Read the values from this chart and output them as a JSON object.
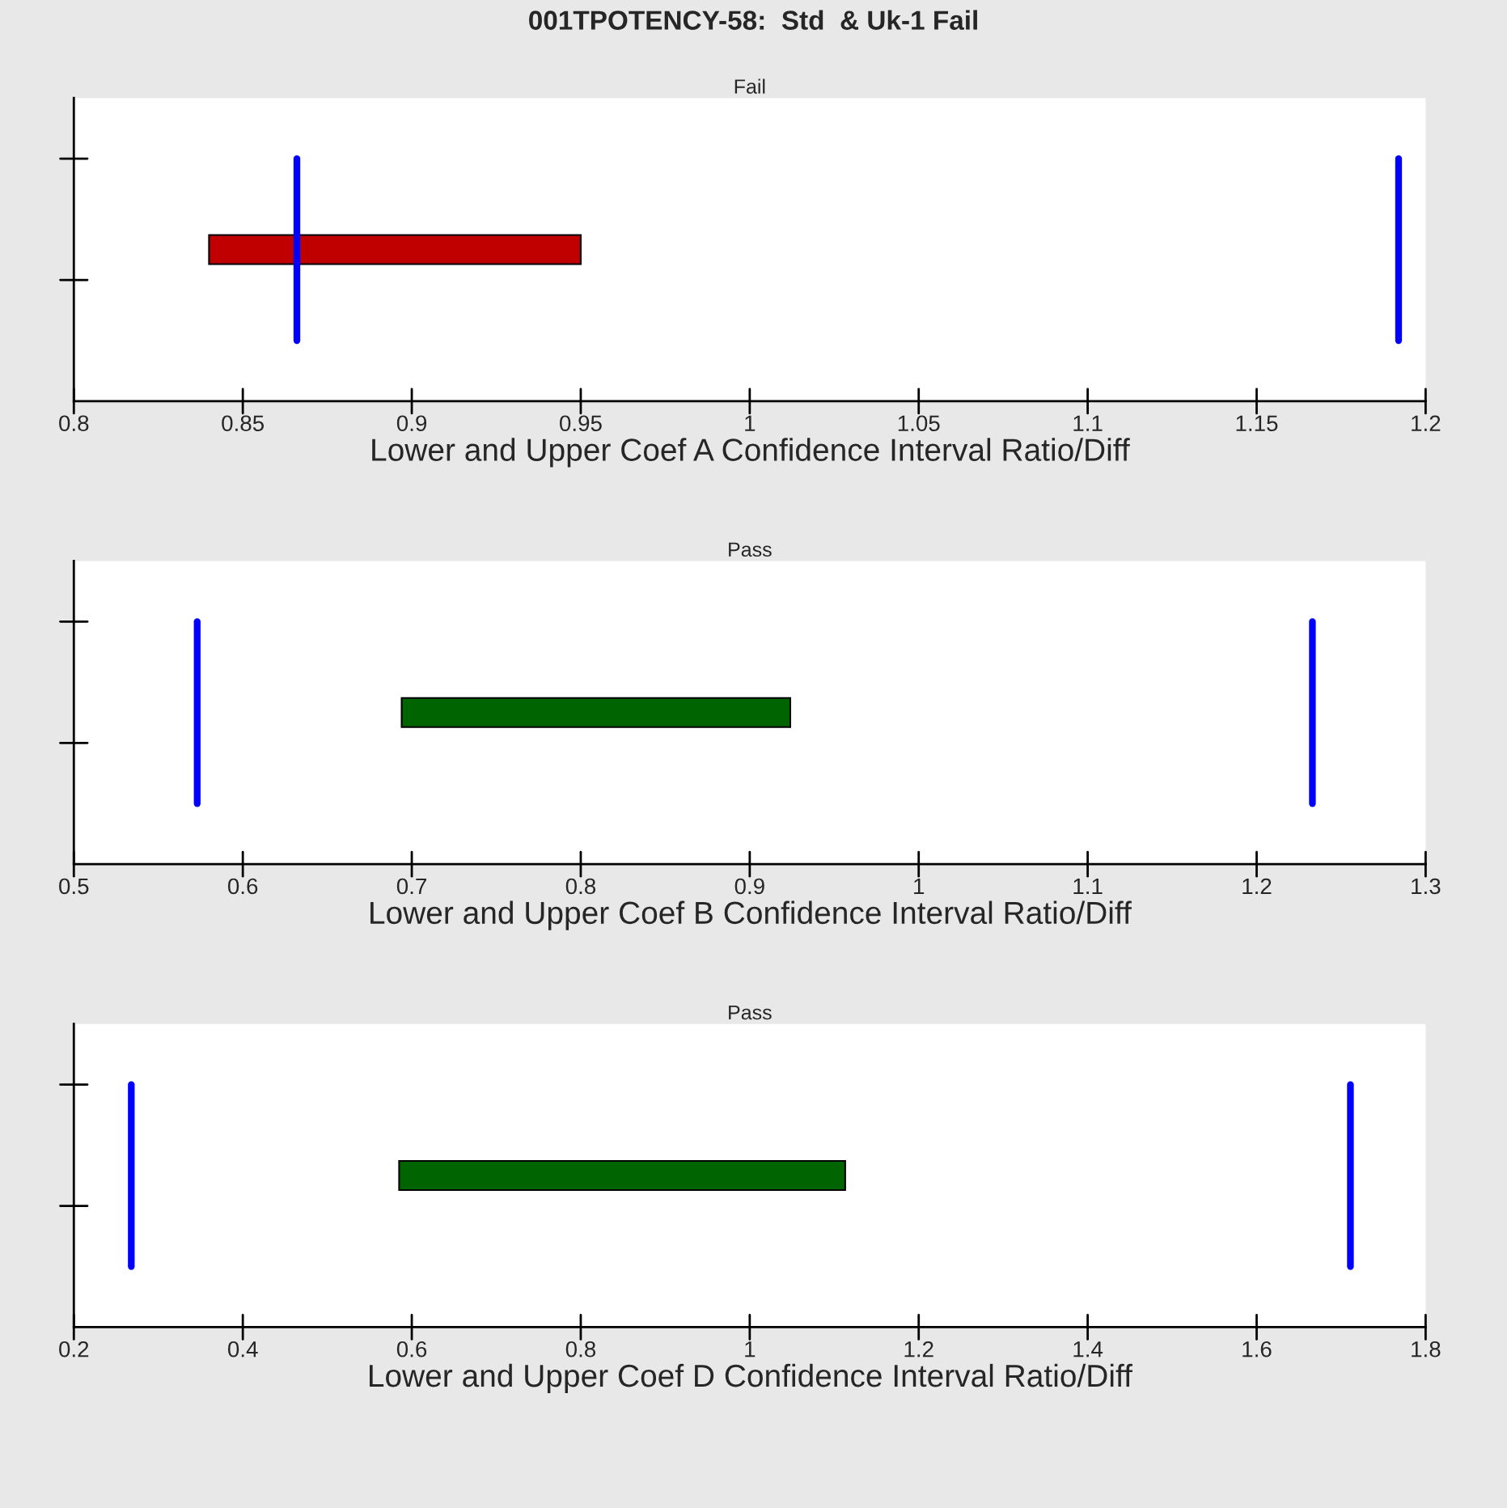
{
  "chart_data": [
    {
      "type": "bar",
      "orientation": "horizontal",
      "title": "001TPOTENCY-58:  Std  & Uk-1 Fail",
      "subtitle": "Fail",
      "xlabel": "Lower and Upper Coef A Confidence Interval Ratio/Diff",
      "categories": [
        null
      ],
      "base": [
        0.84
      ],
      "values": [
        0.11
      ],
      "colors": [
        "#c00000"
      ],
      "xlim": [
        0.8,
        1.2
      ],
      "xticks": [
        0.8,
        0.85,
        0.9,
        0.95,
        1,
        1.05,
        1.1,
        1.15,
        1.2
      ],
      "grid": false,
      "ref_lines": [
        {
          "axis": "x",
          "value": 0.866,
          "color": "#0000ff"
        },
        {
          "axis": "x",
          "value": 1.192,
          "color": "#0000ff"
        }
      ]
    },
    {
      "type": "bar",
      "orientation": "horizontal",
      "subtitle": "Pass",
      "xlabel": "Lower and Upper Coef B Confidence Interval Ratio/Diff",
      "categories": [
        null
      ],
      "base": [
        0.694
      ],
      "values": [
        0.23
      ],
      "colors": [
        "#006400"
      ],
      "xlim": [
        0.5,
        1.3
      ],
      "xticks": [
        0.5,
        0.6,
        0.7,
        0.8,
        0.9,
        1,
        1.1,
        1.2,
        1.3
      ],
      "grid": false,
      "ref_lines": [
        {
          "axis": "x",
          "value": 0.573,
          "color": "#0000ff"
        },
        {
          "axis": "x",
          "value": 1.233,
          "color": "#0000ff"
        }
      ]
    },
    {
      "type": "bar",
      "orientation": "horizontal",
      "subtitle": "Pass",
      "xlabel": "Lower and Upper Coef D Confidence Interval Ratio/Diff",
      "categories": [
        null
      ],
      "base": [
        0.585
      ],
      "values": [
        0.528
      ],
      "colors": [
        "#006400"
      ],
      "xlim": [
        0.2,
        1.8
      ],
      "xticks": [
        0.2,
        0.4,
        0.6,
        0.8,
        1,
        1.2,
        1.4,
        1.6,
        1.8
      ],
      "grid": false,
      "ref_lines": [
        {
          "axis": "x",
          "value": 0.268,
          "color": "#0000ff"
        },
        {
          "axis": "x",
          "value": 1.711,
          "color": "#0000ff"
        }
      ]
    }
  ]
}
